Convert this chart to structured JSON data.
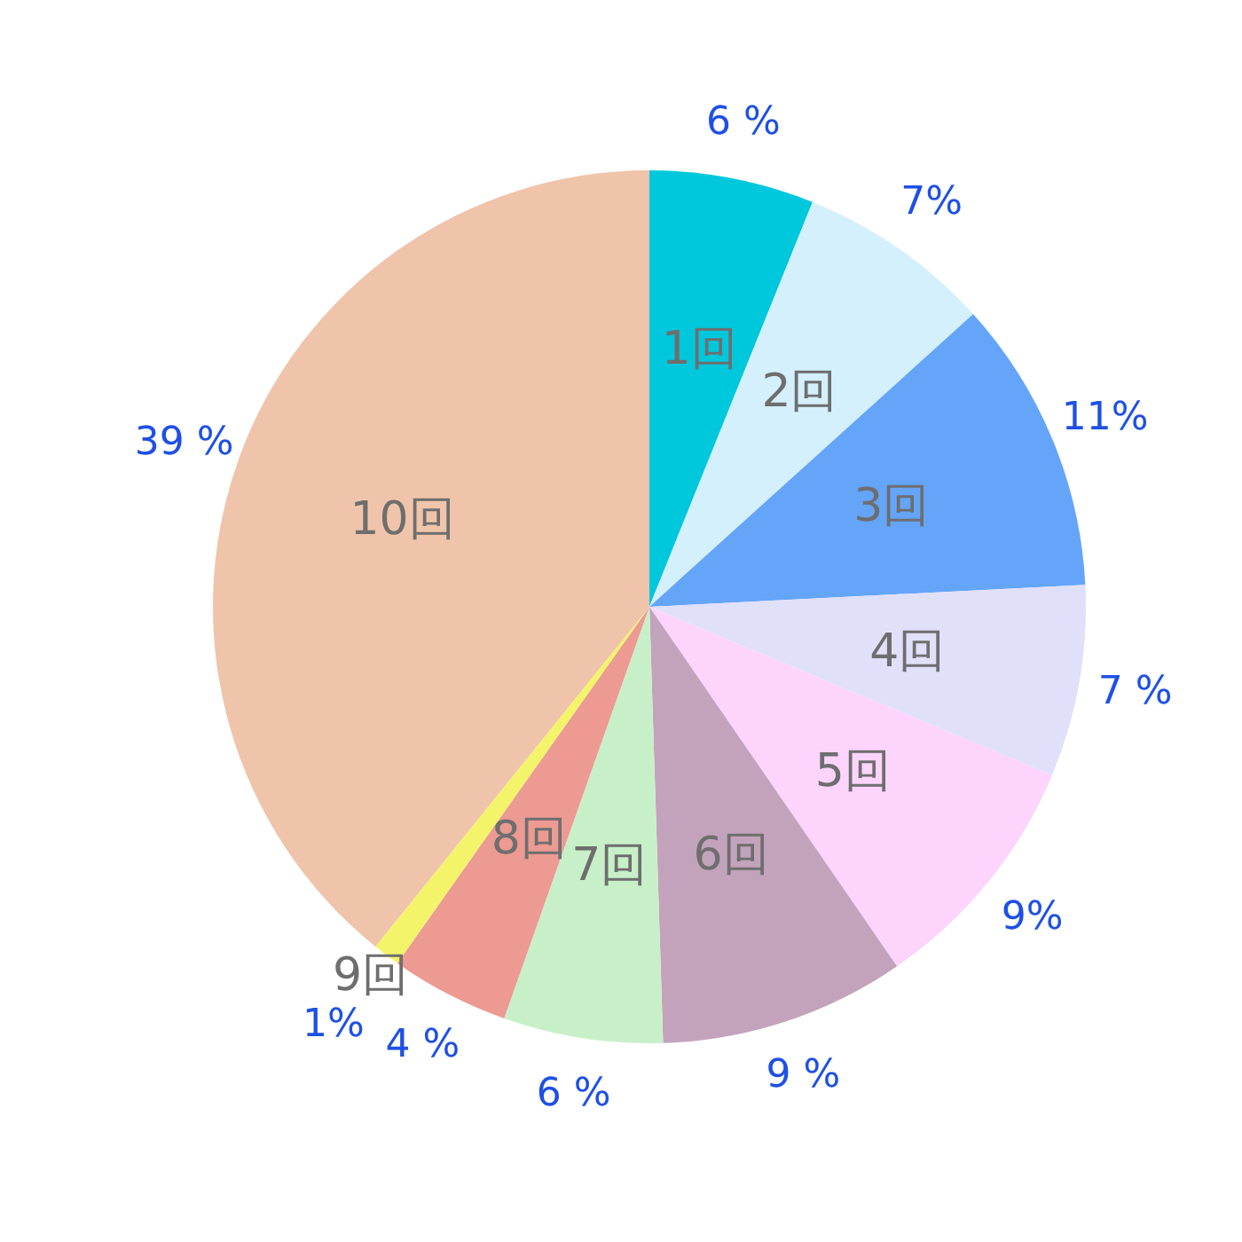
{
  "chart_data": {
    "type": "pie",
    "categories": [
      "1回",
      "2回",
      "3回",
      "4回",
      "5回",
      "6回",
      "7回",
      "8回",
      "9回",
      "10回"
    ],
    "values": [
      6.1,
      7.2,
      10.9,
      7.1,
      9.1,
      9.1,
      5.9,
      4.4,
      1.0,
      39.2
    ],
    "value_labels": [
      "6 %",
      "7%",
      "11%",
      "7 %",
      "9%",
      "9 %",
      "6 %",
      "4 %",
      "1%",
      "39 %"
    ],
    "colors": [
      "#00c8dc",
      "#d4f0fc",
      "#64a5fa",
      "#e0e0fa",
      "#fcd4fc",
      "#c3a3bc",
      "#c8f0c8",
      "#ec9a92",
      "#f4f46a",
      "#f0c4aa"
    ]
  }
}
